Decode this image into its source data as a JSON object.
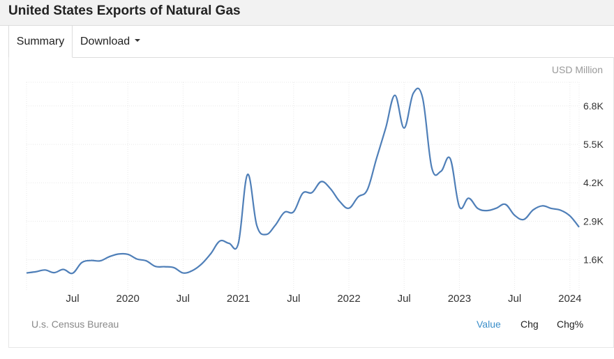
{
  "title": "United States Exports of Natural Gas",
  "tabs": {
    "summary": "Summary",
    "download": "Download"
  },
  "unit": "USD Million",
  "source": "U.s. Census Bureau",
  "toggles": {
    "value": "Value",
    "chg": "Chg",
    "chg_pct": "Chg%"
  },
  "colors": {
    "line": "#4f7fb8",
    "grid": "#e8e8e8",
    "active_toggle": "#3a8ec9"
  },
  "chart_data": {
    "type": "line",
    "title": "United States Exports of Natural Gas",
    "ylabel": "USD Million",
    "y_ticks": [
      {
        "value": 1600,
        "label": "1.6K"
      },
      {
        "value": 2900,
        "label": "2.9K"
      },
      {
        "value": 4200,
        "label": "4.2K"
      },
      {
        "value": 5500,
        "label": "5.5K"
      },
      {
        "value": 6800,
        "label": "6.8K"
      }
    ],
    "x_ticks": [
      {
        "date": "2019-07",
        "label": "Jul"
      },
      {
        "date": "2020-01",
        "label": "2020"
      },
      {
        "date": "2020-07",
        "label": "Jul"
      },
      {
        "date": "2021-01",
        "label": "2021"
      },
      {
        "date": "2021-07",
        "label": "Jul"
      },
      {
        "date": "2022-01",
        "label": "2022"
      },
      {
        "date": "2022-07",
        "label": "Jul"
      },
      {
        "date": "2023-01",
        "label": "2023"
      },
      {
        "date": "2023-07",
        "label": "Jul"
      },
      {
        "date": "2024-01",
        "label": "2024"
      }
    ],
    "ylim": [
      550,
      7600
    ],
    "xlim": [
      "2019-02",
      "2024-02"
    ],
    "grid": true,
    "series": [
      {
        "points": [
          [
            "2019-02",
            1150
          ],
          [
            "2019-03",
            1190
          ],
          [
            "2019-04",
            1250
          ],
          [
            "2019-05",
            1160
          ],
          [
            "2019-06",
            1270
          ],
          [
            "2019-07",
            1140
          ],
          [
            "2019-08",
            1500
          ],
          [
            "2019-09",
            1570
          ],
          [
            "2019-10",
            1560
          ],
          [
            "2019-11",
            1700
          ],
          [
            "2019-12",
            1790
          ],
          [
            "2020-01",
            1780
          ],
          [
            "2020-02",
            1620
          ],
          [
            "2020-03",
            1560
          ],
          [
            "2020-04",
            1370
          ],
          [
            "2020-05",
            1360
          ],
          [
            "2020-06",
            1330
          ],
          [
            "2020-07",
            1150
          ],
          [
            "2020-08",
            1230
          ],
          [
            "2020-09",
            1450
          ],
          [
            "2020-10",
            1800
          ],
          [
            "2020-11",
            2230
          ],
          [
            "2020-12",
            2150
          ],
          [
            "2021-01",
            2150
          ],
          [
            "2021-02",
            4480
          ],
          [
            "2021-03",
            2760
          ],
          [
            "2021-04",
            2450
          ],
          [
            "2021-05",
            2760
          ],
          [
            "2021-06",
            3200
          ],
          [
            "2021-07",
            3220
          ],
          [
            "2021-08",
            3850
          ],
          [
            "2021-09",
            3870
          ],
          [
            "2021-10",
            4240
          ],
          [
            "2021-11",
            4000
          ],
          [
            "2021-12",
            3570
          ],
          [
            "2022-01",
            3340
          ],
          [
            "2022-02",
            3720
          ],
          [
            "2022-03",
            3960
          ],
          [
            "2022-04",
            5020
          ],
          [
            "2022-05",
            6050
          ],
          [
            "2022-06",
            7160
          ],
          [
            "2022-07",
            6050
          ],
          [
            "2022-08",
            7230
          ],
          [
            "2022-09",
            7080
          ],
          [
            "2022-10",
            4710
          ],
          [
            "2022-11",
            4590
          ],
          [
            "2022-12",
            5020
          ],
          [
            "2023-01",
            3390
          ],
          [
            "2023-02",
            3680
          ],
          [
            "2023-03",
            3330
          ],
          [
            "2023-04",
            3260
          ],
          [
            "2023-05",
            3340
          ],
          [
            "2023-06",
            3470
          ],
          [
            "2023-07",
            3100
          ],
          [
            "2023-08",
            2960
          ],
          [
            "2023-09",
            3280
          ],
          [
            "2023-10",
            3420
          ],
          [
            "2023-11",
            3330
          ],
          [
            "2023-12",
            3270
          ],
          [
            "2024-01",
            3080
          ],
          [
            "2024-02",
            2700
          ]
        ]
      }
    ]
  }
}
